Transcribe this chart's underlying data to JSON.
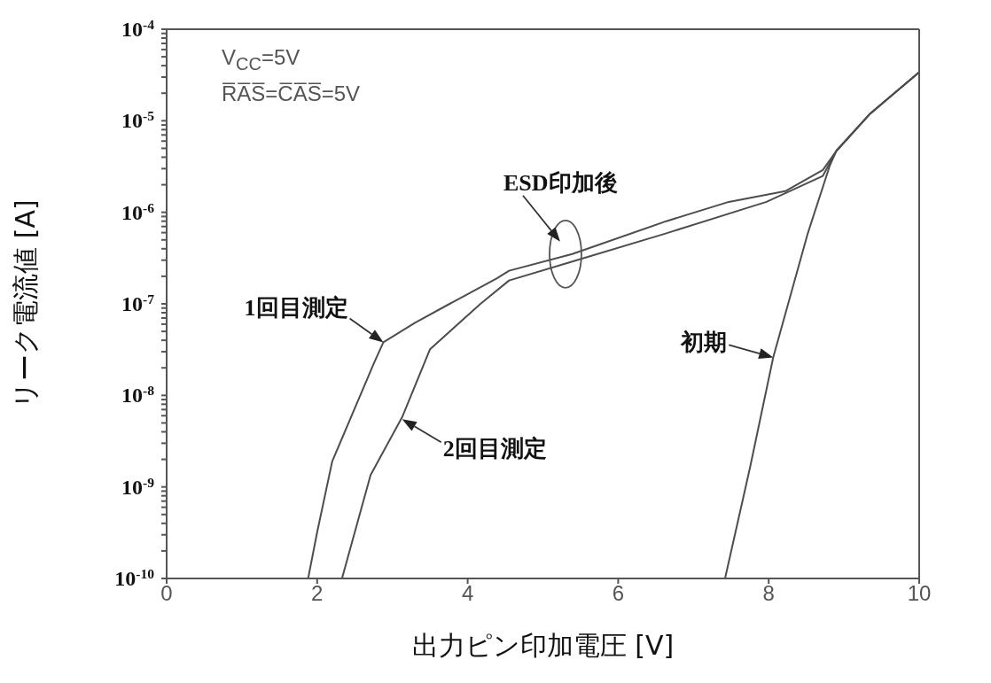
{
  "chart_data": {
    "type": "line",
    "xlabel": "出力ピン印加電圧 [V]",
    "ylabel": "リーク電流値 [A]",
    "log": true,
    "grid": false,
    "marker": "none",
    "line_style": "solid",
    "xlim": [
      0,
      10
    ],
    "xticks": [
      0,
      2,
      4,
      6,
      8,
      10
    ],
    "ylim": [
      1e-10,
      0.0001
    ],
    "yticks": [
      {
        "value": 1e-10,
        "label": "10$^{-10}$"
      },
      {
        "value": 2e-10,
        "label": null
      },
      {
        "value": 3e-10,
        "label": null
      },
      {
        "value": 4e-10,
        "label": null
      },
      {
        "value": 5e-10,
        "label": null
      },
      {
        "value": 6e-10,
        "label": null
      },
      {
        "value": 7e-10,
        "label": null
      },
      {
        "value": 8e-10,
        "label": null
      },
      {
        "value": 9e-10,
        "label": null
      },
      {
        "value": 1e-09,
        "label": "10$^{-9}$"
      },
      {
        "value": 2e-09,
        "label": null
      },
      {
        "value": 3e-09,
        "label": null
      },
      {
        "value": 4e-09,
        "label": null
      },
      {
        "value": 5e-09,
        "label": null
      },
      {
        "value": 6e-09,
        "label": null
      },
      {
        "value": 7e-09,
        "label": null
      },
      {
        "value": 8e-09,
        "label": null
      },
      {
        "value": 9e-09,
        "label": null
      },
      {
        "value": 1e-08,
        "label": "10$^{-8}$"
      },
      {
        "value": 2e-08,
        "label": null
      },
      {
        "value": 3e-08,
        "label": null
      },
      {
        "value": 4e-08,
        "label": null
      },
      {
        "value": 5e-08,
        "label": null
      },
      {
        "value": 6e-08,
        "label": null
      },
      {
        "value": 7e-08,
        "label": null
      },
      {
        "value": 8e-08,
        "label": null
      },
      {
        "value": 9e-08,
        "label": null
      },
      {
        "value": 1e-07,
        "label": "10$^{-7}$"
      },
      {
        "value": 2e-07,
        "label": null
      },
      {
        "value": 3e-07,
        "label": null
      },
      {
        "value": 4e-07,
        "label": null
      },
      {
        "value": 5e-07,
        "label": null
      },
      {
        "value": 6e-07,
        "label": null
      },
      {
        "value": 7e-07,
        "label": null
      },
      {
        "value": 8e-07,
        "label": null
      },
      {
        "value": 9e-07,
        "label": null
      },
      {
        "value": 1e-06,
        "label": "10$^{-6}$"
      },
      {
        "value": 2e-06,
        "label": null
      },
      {
        "value": 3e-06,
        "label": null
      },
      {
        "value": 4e-06,
        "label": null
      },
      {
        "value": 5e-06,
        "label": null
      },
      {
        "value": 6e-06,
        "label": null
      },
      {
        "value": 7e-06,
        "label": null
      },
      {
        "value": 8e-06,
        "label": null
      },
      {
        "value": 9e-06,
        "label": null
      },
      {
        "value": 1e-05,
        "label": "10$^{-5}$"
      },
      {
        "value": 2e-05,
        "label": null
      },
      {
        "value": 3e-05,
        "label": null
      },
      {
        "value": 4e-05,
        "label": null
      },
      {
        "value": 5e-05,
        "label": null
      },
      {
        "value": 6e-05,
        "label": null
      },
      {
        "value": 7e-05,
        "label": null
      },
      {
        "value": 8e-05,
        "label": null
      },
      {
        "value": 9e-05,
        "label": null
      },
      {
        "value": 0.0001,
        "label": "10$^{-4}$"
      }
    ],
    "series": [
      {
        "color": "#4d4d4d",
        "x": [
          1.88,
          2.0,
          2.2,
          2.76,
          2.88,
          3.3,
          3.76,
          4.39,
          4.55,
          5.39,
          6.64,
          7.47,
          8.22,
          8.72,
          8.9,
          9.35,
          10
        ],
        "values": [
          1e-10,
          3.2e-10,
          1.9e-09,
          2.3e-08,
          3.8e-08,
          6.2e-08,
          1e-07,
          1.9e-07,
          2.3e-07,
          3.5e-07,
          8e-07,
          1.3e-06,
          1.7e-06,
          2.9e-06,
          4.7e-06,
          1.2e-05,
          3.4e-05
        ]
      },
      {
        "color": "#4d4d4d",
        "x": [
          2.33,
          2.71,
          3.13,
          3.5,
          4.17,
          4.55,
          5.39,
          6.64,
          7.97,
          8.72,
          8.9,
          9.35,
          10
        ],
        "values": [
          1e-10,
          1.35e-09,
          5.8e-09,
          3.2e-08,
          1e-07,
          1.8e-07,
          2.9e-07,
          5.9e-07,
          1.3e-06,
          2.5e-06,
          4.7e-06,
          1.2e-05,
          3.4e-05
        ]
      },
      {
        "color": "#4d4d4d",
        "x": [
          7.42,
          7.75,
          8.06,
          8.52,
          8.81,
          8.9,
          9.35,
          10
        ],
        "values": [
          1e-10,
          1.6e-09,
          2.6e-08,
          5.9e-07,
          3.2e-06,
          4.7e-06,
          1.2e-05,
          3.4e-05
        ]
      }
    ],
    "annotations": [
      "V$_{CC}$=5V",
      "R̅A̅S̅=C̅A̅S̅=5V",
      {
        "text": "1回目測定",
        "x": 2.88,
        "y": 3.8e-08
      },
      {
        "text": "2回目測定",
        "x": 3.13,
        "y": 5.5e-09
      },
      {
        "text": "初期",
        "x": 8.06,
        "y": 2.6e-08
      },
      {
        "text": "ESD印加後",
        "x": 5.3,
        "y": 3.5e-07
      }
    ]
  }
}
